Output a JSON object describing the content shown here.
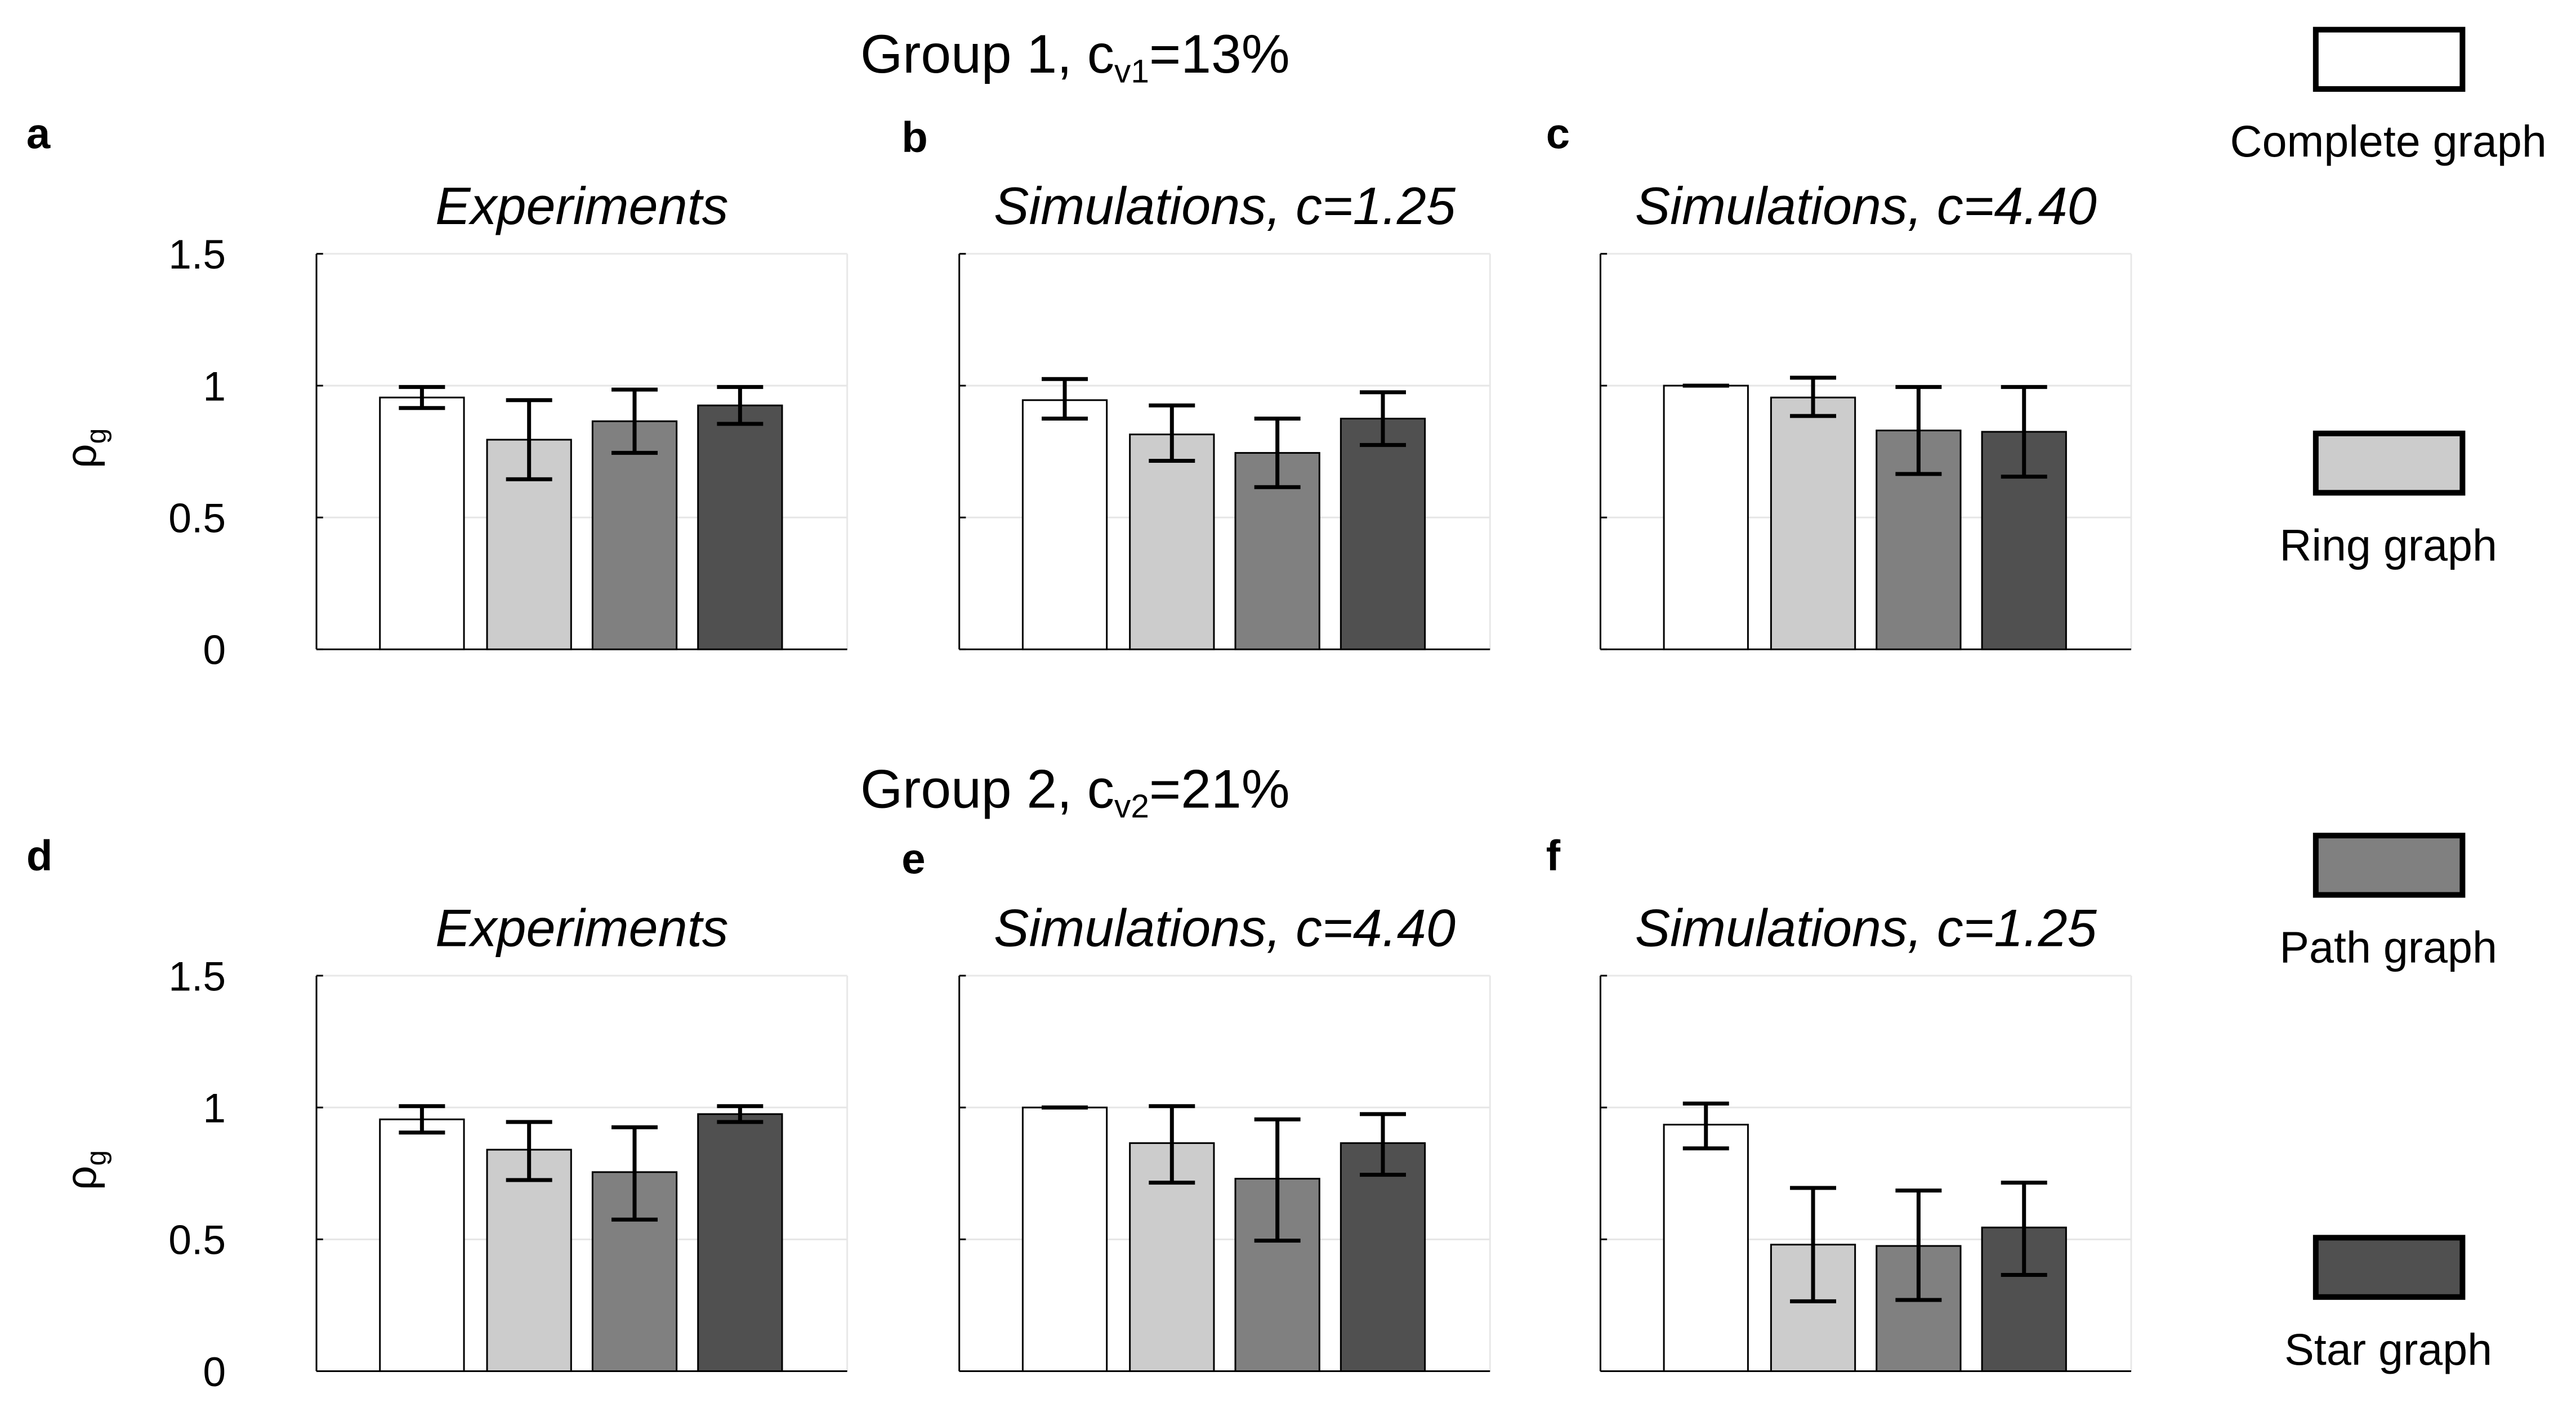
{
  "legend": {
    "items": [
      {
        "label": "Complete graph",
        "color": "#ffffff"
      },
      {
        "label": "Ring graph",
        "color": "#cccccc"
      },
      {
        "label": "Path graph",
        "color": "#808080"
      },
      {
        "label": "Star graph",
        "color": "#505050"
      }
    ]
  },
  "groups": [
    {
      "title": "Group 1, c",
      "subscript": "v1",
      "suffix": "=13%"
    },
    {
      "title": "Group 2, c",
      "subscript": "v2",
      "suffix": "=21%"
    }
  ],
  "ylabel": {
    "main": "ρ",
    "sub": "g"
  },
  "chart_data": [
    {
      "type": "bar",
      "panel": "a",
      "title": "Experiments",
      "group": 1,
      "categories": [
        "Complete graph",
        "Ring graph",
        "Path graph",
        "Star graph"
      ],
      "values": [
        0.955,
        0.795,
        0.865,
        0.925
      ],
      "error_low": [
        0.915,
        0.645,
        0.745,
        0.855
      ],
      "error_high": [
        0.995,
        0.945,
        0.985,
        0.995
      ],
      "ylim": [
        0,
        1.5
      ],
      "yticks": [
        "0",
        "0.5",
        "1",
        "1.5"
      ],
      "ylabel": "ρg",
      "grid": true
    },
    {
      "type": "bar",
      "panel": "b",
      "title": "Simulations, c=1.25",
      "group": 1,
      "categories": [
        "Complete graph",
        "Ring graph",
        "Path graph",
        "Star graph"
      ],
      "values": [
        0.945,
        0.815,
        0.745,
        0.875
      ],
      "error_low": [
        0.875,
        0.715,
        0.615,
        0.775
      ],
      "error_high": [
        1.025,
        0.925,
        0.875,
        0.975
      ],
      "ylim": [
        0,
        1.5
      ],
      "yticks": [
        "0",
        "0.5",
        "1",
        "1.5"
      ],
      "ylabel": "",
      "grid": true
    },
    {
      "type": "bar",
      "panel": "c",
      "title": "Simulations, c=4.40",
      "group": 1,
      "categories": [
        "Complete graph",
        "Ring graph",
        "Path graph",
        "Star graph"
      ],
      "values": [
        1.0,
        0.955,
        0.83,
        0.825
      ],
      "error_low": [
        1.0,
        0.885,
        0.665,
        0.655
      ],
      "error_high": [
        1.0,
        1.03,
        0.995,
        0.995
      ],
      "ylim": [
        0,
        1.5
      ],
      "yticks": [
        "0",
        "0.5",
        "1",
        "1.5"
      ],
      "ylabel": "",
      "grid": true
    },
    {
      "type": "bar",
      "panel": "d",
      "title": "Experiments",
      "group": 2,
      "categories": [
        "Complete graph",
        "Ring graph",
        "Path graph",
        "Star graph"
      ],
      "values": [
        0.955,
        0.84,
        0.755,
        0.975
      ],
      "error_low": [
        0.905,
        0.725,
        0.575,
        0.945
      ],
      "error_high": [
        1.005,
        0.945,
        0.925,
        1.005
      ],
      "ylim": [
        0,
        1.5
      ],
      "yticks": [
        "0",
        "0.5",
        "1",
        "1.5"
      ],
      "ylabel": "ρg",
      "grid": true
    },
    {
      "type": "bar",
      "panel": "e",
      "title": "Simulations, c=4.40",
      "group": 2,
      "categories": [
        "Complete graph",
        "Ring graph",
        "Path graph",
        "Star graph"
      ],
      "values": [
        1.0,
        0.865,
        0.73,
        0.865
      ],
      "error_low": [
        1.0,
        0.715,
        0.495,
        0.745
      ],
      "error_high": [
        1.0,
        1.005,
        0.955,
        0.975
      ],
      "ylim": [
        0,
        1.5
      ],
      "yticks": [
        "0",
        "0.5",
        "1",
        "1.5"
      ],
      "ylabel": "",
      "grid": true
    },
    {
      "type": "bar",
      "panel": "f",
      "title": "Simulations, c=1.25",
      "group": 2,
      "categories": [
        "Complete graph",
        "Ring graph",
        "Path graph",
        "Star graph"
      ],
      "values": [
        0.935,
        0.48,
        0.475,
        0.545
      ],
      "error_low": [
        0.845,
        0.265,
        0.27,
        0.365
      ],
      "error_high": [
        1.015,
        0.695,
        0.685,
        0.715
      ],
      "ylim": [
        0,
        1.5
      ],
      "yticks": [
        "0",
        "0.5",
        "1",
        "1.5"
      ],
      "ylabel": "",
      "grid": true
    }
  ]
}
